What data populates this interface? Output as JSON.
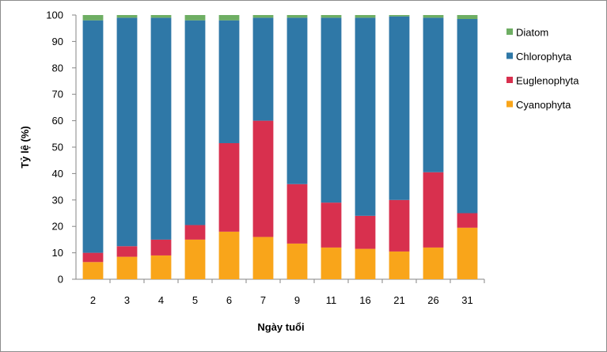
{
  "chart_data": {
    "type": "bar",
    "stacked": true,
    "categories": [
      "2",
      "3",
      "4",
      "5",
      "6",
      "7",
      "9",
      "11",
      "16",
      "21",
      "26",
      "31"
    ],
    "series": [
      {
        "name": "Cyanophyta",
        "color": "#F9A51A",
        "values": [
          6.5,
          8.5,
          9,
          15,
          18,
          16,
          13.5,
          12,
          11.5,
          10.5,
          12,
          19.5
        ]
      },
      {
        "name": "Euglenophyta",
        "color": "#D8304E",
        "values": [
          3.5,
          4,
          6,
          5.5,
          33.5,
          44,
          22.5,
          17,
          12.5,
          19.5,
          28.5,
          5.5
        ]
      },
      {
        "name": "Chlorophyta",
        "color": "#2F78A7",
        "values": [
          88,
          86.5,
          84,
          77.5,
          46.5,
          39,
          63,
          70,
          75,
          69.5,
          58.5,
          73.5
        ]
      },
      {
        "name": "Diatom",
        "color": "#6EAE63",
        "values": [
          2,
          1,
          1,
          2,
          2,
          1,
          1,
          1,
          1,
          0.5,
          1,
          1.5
        ]
      }
    ],
    "legend_order": [
      "Diatom",
      "Chlorophyta",
      "Euglenophyta",
      "Cyanophyta"
    ],
    "yticks": [
      "0",
      "10",
      "20",
      "30",
      "40",
      "50",
      "60",
      "70",
      "80",
      "90",
      "100"
    ],
    "xlabel": "Ngày tuổi",
    "ylabel": "Tỷ lệ (%)",
    "ylim": [
      0,
      100
    ],
    "grid": false,
    "legend_position": "right"
  }
}
